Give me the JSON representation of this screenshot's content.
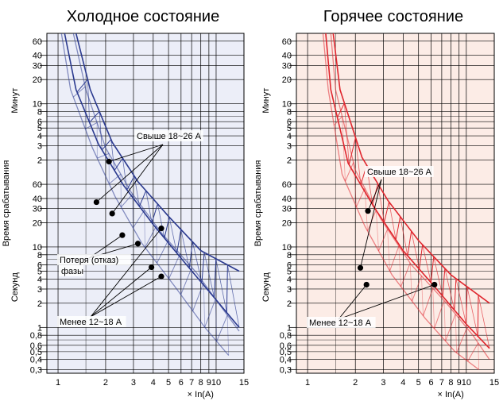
{
  "chart_data": [
    {
      "type": "line",
      "title": "Холодное состояние",
      "xlabel": "× In(A)",
      "ylabel": "Время срабатывания",
      "y_unit_minutes": "Минут",
      "y_unit_seconds": "Секунд",
      "x_scale": "log",
      "y_scale": "log",
      "xlim": [
        0.85,
        15
      ],
      "x_ticks": [
        1,
        2,
        3,
        4,
        5,
        6,
        7,
        8,
        9,
        10,
        15
      ],
      "x_tick_labels": [
        "1",
        "2",
        "3",
        "4",
        "5",
        "6",
        "7",
        "8",
        "9",
        "10",
        "15"
      ],
      "y_minute_ticks": [
        60,
        40,
        30,
        20,
        10,
        8,
        6,
        5,
        4,
        3,
        2
      ],
      "y_second_ticks": [
        60,
        40,
        30,
        20,
        10,
        8,
        6,
        5,
        4,
        3,
        2,
        1,
        0.8,
        0.6,
        0.5,
        0.4,
        0.3
      ],
      "y_tick_labels_minutes": [
        "60",
        "40",
        "30",
        "20",
        "10",
        "8",
        "6",
        "5",
        "4",
        "3",
        "2"
      ],
      "y_tick_labels_seconds": [
        "60",
        "40",
        "30",
        "20",
        "10",
        "8",
        "6",
        "5",
        "4",
        "3",
        "2",
        "1",
        "0,8",
        "0,6",
        "0,5",
        "0,4",
        "0,3"
      ],
      "grid": true,
      "color": "#2b3a8f",
      "background": "#eceef8",
      "series": [
        {
          "name": "Свыше 18~26 А",
          "upper": [
            [
              1.3,
              4500
            ],
            [
              1.6,
              900
            ],
            [
              2.2,
              200
            ],
            [
              3.2,
              65
            ],
            [
              5,
              24
            ],
            [
              8,
              9
            ],
            [
              14,
              5
            ]
          ],
          "lower": [
            [
              1.1,
              4500
            ],
            [
              1.3,
              900
            ],
            [
              1.8,
              190
            ],
            [
              2.6,
              58
            ],
            [
              4,
              19
            ],
            [
              6.5,
              6
            ],
            [
              10,
              2.2
            ],
            [
              14,
              1
            ]
          ]
        },
        {
          "name": "Менее 12~18 А",
          "upper": [
            [
              1.25,
              4500
            ],
            [
              1.5,
              900
            ],
            [
              2,
              170
            ],
            [
              2.9,
              48
            ],
            [
              4.5,
              15
            ],
            [
              7.5,
              4.8
            ],
            [
              11,
              1.7
            ],
            [
              14,
              0.9
            ]
          ],
          "lower": [
            [
              1.05,
              4500
            ],
            [
              1.2,
              900
            ],
            [
              1.65,
              170
            ],
            [
              2.3,
              42
            ],
            [
              3.4,
              11
            ],
            [
              5.5,
              3.2
            ],
            [
              8.5,
              1
            ],
            [
              12,
              0.45
            ]
          ]
        }
      ],
      "annotations": [
        {
          "text": "Свыше 18~26 А",
          "points": [
            [
              2.1,
              115
            ],
            [
              1.75,
              36
            ],
            [
              2.2,
              26
            ]
          ]
        },
        {
          "text": "Потеря (отказ)",
          "points": [
            [
              2.55,
              14
            ],
            [
              3.2,
              11
            ]
          ]
        },
        {
          "text": "фазы"
        },
        {
          "text": "Менее 12~18 А",
          "points": [
            [
              3.9,
              5.6
            ],
            [
              4.5,
              4.3
            ],
            [
              4.5,
              17
            ]
          ]
        }
      ]
    },
    {
      "type": "line",
      "title": "Горячее состояние",
      "xlabel": "× In(A)",
      "ylabel": "Время срабатывания",
      "y_unit_minutes": "Минут",
      "y_unit_seconds": "Секунд",
      "x_scale": "log",
      "y_scale": "log",
      "xlim": [
        0.85,
        15
      ],
      "x_ticks": [
        1,
        2,
        3,
        4,
        5,
        6,
        7,
        8,
        9,
        10,
        15
      ],
      "x_tick_labels": [
        "1",
        "2",
        "3",
        "4",
        "5",
        "6",
        "7",
        "8",
        "9",
        "10",
        "15"
      ],
      "y_minute_ticks": [
        60,
        40,
        30,
        20,
        10,
        8,
        6,
        5,
        4,
        3,
        2
      ],
      "y_second_ticks": [
        60,
        40,
        30,
        20,
        10,
        8,
        6,
        5,
        4,
        3,
        2,
        1,
        0.8,
        0.6,
        0.5,
        0.4,
        0.3
      ],
      "y_tick_labels_minutes": [
        "60",
        "40",
        "30",
        "20",
        "10",
        "8",
        "6",
        "5",
        "4",
        "3",
        "2"
      ],
      "y_tick_labels_seconds": [
        "60",
        "40",
        "30",
        "20",
        "10",
        "8",
        "6",
        "5",
        "4",
        "3",
        "2",
        "1",
        "0,8",
        "0,6",
        "0,5",
        "0,4",
        "0,3"
      ],
      "grid": true,
      "color": "#e0262e",
      "background": "#fcece6",
      "series": [
        {
          "name": "Свыше 18~26 А",
          "upper": [
            [
              1.45,
              4500
            ],
            [
              1.6,
              900
            ],
            [
              2.2,
              130
            ],
            [
              3.2,
              38
            ],
            [
              5,
              12
            ],
            [
              8,
              4.5
            ],
            [
              14,
              2
            ]
          ],
          "lower": [
            [
              1.3,
              4500
            ],
            [
              1.4,
              900
            ],
            [
              1.8,
              110
            ],
            [
              2.6,
              32
            ],
            [
              4,
              9
            ],
            [
              6.5,
              3
            ],
            [
              10,
              1.1
            ],
            [
              14,
              0.55
            ]
          ]
        },
        {
          "name": "Менее 12~18 А",
          "upper": [
            [
              1.4,
              4500
            ],
            [
              1.5,
              900
            ],
            [
              2,
              90
            ],
            [
              2.9,
              22
            ],
            [
              4.5,
              6
            ],
            [
              7.5,
              2
            ],
            [
              11,
              0.8
            ],
            [
              14,
              0.4
            ]
          ],
          "lower": [
            [
              1.25,
              4500
            ],
            [
              1.35,
              900
            ],
            [
              1.65,
              80
            ],
            [
              2.3,
              18
            ],
            [
              3.4,
              4.5
            ],
            [
              5.5,
              1.3
            ],
            [
              8.5,
              0.5
            ],
            [
              12,
              0.3
            ]
          ]
        }
      ],
      "annotations": [
        {
          "text": "Свыше 18~26 А",
          "points": [
            [
              2.4,
              28
            ],
            [
              2.15,
              5.5
            ]
          ]
        },
        {
          "text": "Менее 12~18 А",
          "points": [
            [
              2.35,
              3.4
            ],
            [
              6.3,
              3.4
            ]
          ]
        }
      ]
    }
  ]
}
